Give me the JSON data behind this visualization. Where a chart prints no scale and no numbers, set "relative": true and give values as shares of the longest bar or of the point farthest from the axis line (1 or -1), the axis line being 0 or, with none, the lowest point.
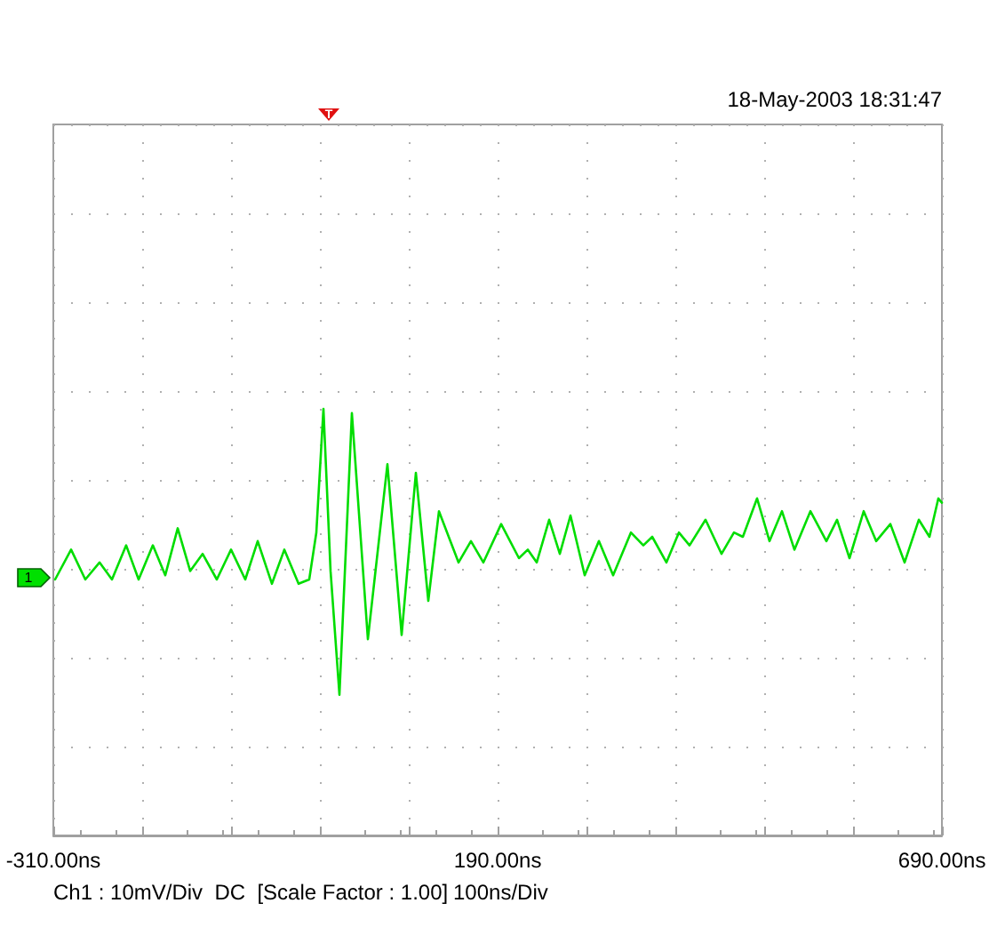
{
  "chart_data": {
    "type": "line",
    "relative": true,
    "grid": true,
    "marker": "none",
    "line_style": "solid",
    "xlim": [
      -310,
      690
    ],
    "xticks": [
      {
        "value": -310,
        "label": "-310.00ns"
      },
      {
        "value": -210,
        "label": null
      },
      {
        "value": -110,
        "label": null
      },
      {
        "value": -10,
        "label": null
      },
      {
        "value": 90,
        "label": null
      },
      {
        "value": 190,
        "label": "190.00ns"
      },
      {
        "value": 290,
        "label": null
      },
      {
        "value": 390,
        "label": null
      },
      {
        "value": 490,
        "label": null
      },
      {
        "value": 590,
        "label": null
      },
      {
        "value": 690,
        "label": "690.00ns"
      }
    ],
    "annotations": [
      "18-May-2003 18:31:47",
      "Ch1 : 10mV/Div  DC  [Scale Factor : 1.00]",
      "100ns/Div",
      "T",
      "1"
    ],
    "series": [
      {
        "color": "#00dd00",
        "x": [
          -308,
          -290,
          -274,
          -258,
          -244,
          -228,
          -214,
          -198,
          -184,
          -170,
          -156,
          -142,
          -126,
          -110,
          -94,
          -80,
          -64,
          -50,
          -34,
          -22,
          -14,
          -6,
          2,
          12,
          26,
          44,
          66,
          82,
          98,
          112,
          124,
          146,
          160,
          174,
          194,
          214,
          224,
          234,
          248,
          260,
          272,
          288,
          304,
          320,
          340,
          354,
          364,
          380,
          394,
          406,
          424,
          442,
          456,
          466,
          482,
          496,
          510,
          524,
          542,
          560,
          572,
          586,
          602,
          616,
          632,
          648,
          664,
          676,
          686,
          690
        ],
        "values": [
          0.6,
          0.67,
          0.6,
          0.64,
          0.6,
          0.68,
          0.6,
          0.68,
          0.61,
          0.72,
          0.62,
          0.66,
          0.6,
          0.67,
          0.6,
          0.69,
          0.59,
          0.67,
          0.59,
          0.6,
          0.71,
          1.0,
          0.62,
          0.33,
          0.99,
          0.46,
          0.87,
          0.47,
          0.85,
          0.55,
          0.76,
          0.64,
          0.69,
          0.64,
          0.73,
          0.65,
          0.67,
          0.64,
          0.74,
          0.66,
          0.75,
          0.61,
          0.69,
          0.61,
          0.71,
          0.68,
          0.7,
          0.64,
          0.71,
          0.68,
          0.74,
          0.66,
          0.71,
          0.7,
          0.79,
          0.69,
          0.76,
          0.67,
          0.76,
          0.69,
          0.74,
          0.65,
          0.76,
          0.69,
          0.73,
          0.64,
          0.74,
          0.7,
          0.79,
          0.78
        ]
      }
    ]
  }
}
